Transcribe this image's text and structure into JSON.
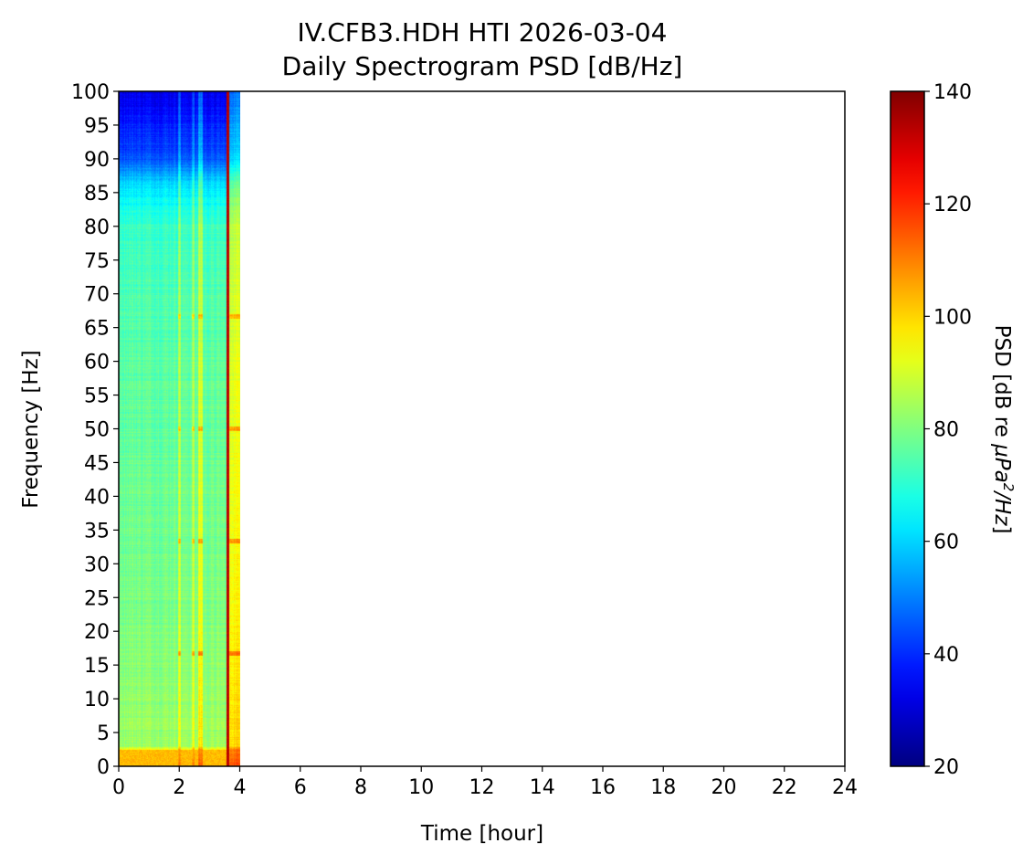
{
  "chart_data": {
    "type": "heatmap",
    "title": "IV.CFB3.HDH HTI 2026-03-04",
    "subtitle": "Daily Spectrogram PSD [dB/Hz]",
    "xlabel": "Time [hour]",
    "ylabel": "Frequency [Hz]",
    "xlim": [
      0,
      24
    ],
    "ylim": [
      0,
      100
    ],
    "x_ticks": [
      0,
      2,
      4,
      6,
      8,
      10,
      12,
      14,
      16,
      18,
      20,
      22,
      24
    ],
    "y_ticks": [
      0,
      5,
      10,
      15,
      20,
      25,
      30,
      35,
      40,
      45,
      50,
      55,
      60,
      65,
      70,
      75,
      80,
      85,
      90,
      95,
      100
    ],
    "data_time_range": [
      0,
      4
    ],
    "colorbar": {
      "label": "PSD [dB re µPa²/Hz]",
      "label_parts": [
        "PSD [dB re ",
        "µPa",
        "2",
        "/Hz",
        "]"
      ],
      "range": [
        20,
        140
      ],
      "ticks": [
        20,
        40,
        60,
        80,
        100,
        120,
        140
      ],
      "colormap": "jet"
    },
    "features": {
      "broadband_event_time": 3.6,
      "low_freq_band_hz": [
        0,
        2.5
      ],
      "band_psd_profile": [
        {
          "freq": 0,
          "psd": 100
        },
        {
          "freq": 2.5,
          "psd": 95
        },
        {
          "freq": 3,
          "psd": 84
        },
        {
          "freq": 20,
          "psd": 80
        },
        {
          "freq": 60,
          "psd": 76
        },
        {
          "freq": 80,
          "psd": 72
        },
        {
          "freq": 86,
          "psd": 62
        },
        {
          "freq": 90,
          "psd": 45
        },
        {
          "freq": 100,
          "psd": 32
        }
      ],
      "loud_periods": [
        {
          "start": 1.95,
          "end": 2.05,
          "delta_db": 10
        },
        {
          "start": 2.4,
          "end": 2.5,
          "delta_db": 9
        },
        {
          "start": 2.62,
          "end": 2.78,
          "delta_db": 14
        },
        {
          "start": 3.55,
          "end": 3.68,
          "delta_db": 10
        },
        {
          "start": 3.68,
          "end": 4.0,
          "delta_db": 16
        }
      ],
      "tonal_lines_hz": [
        16.7,
        33.3,
        50,
        66.7
      ]
    }
  }
}
